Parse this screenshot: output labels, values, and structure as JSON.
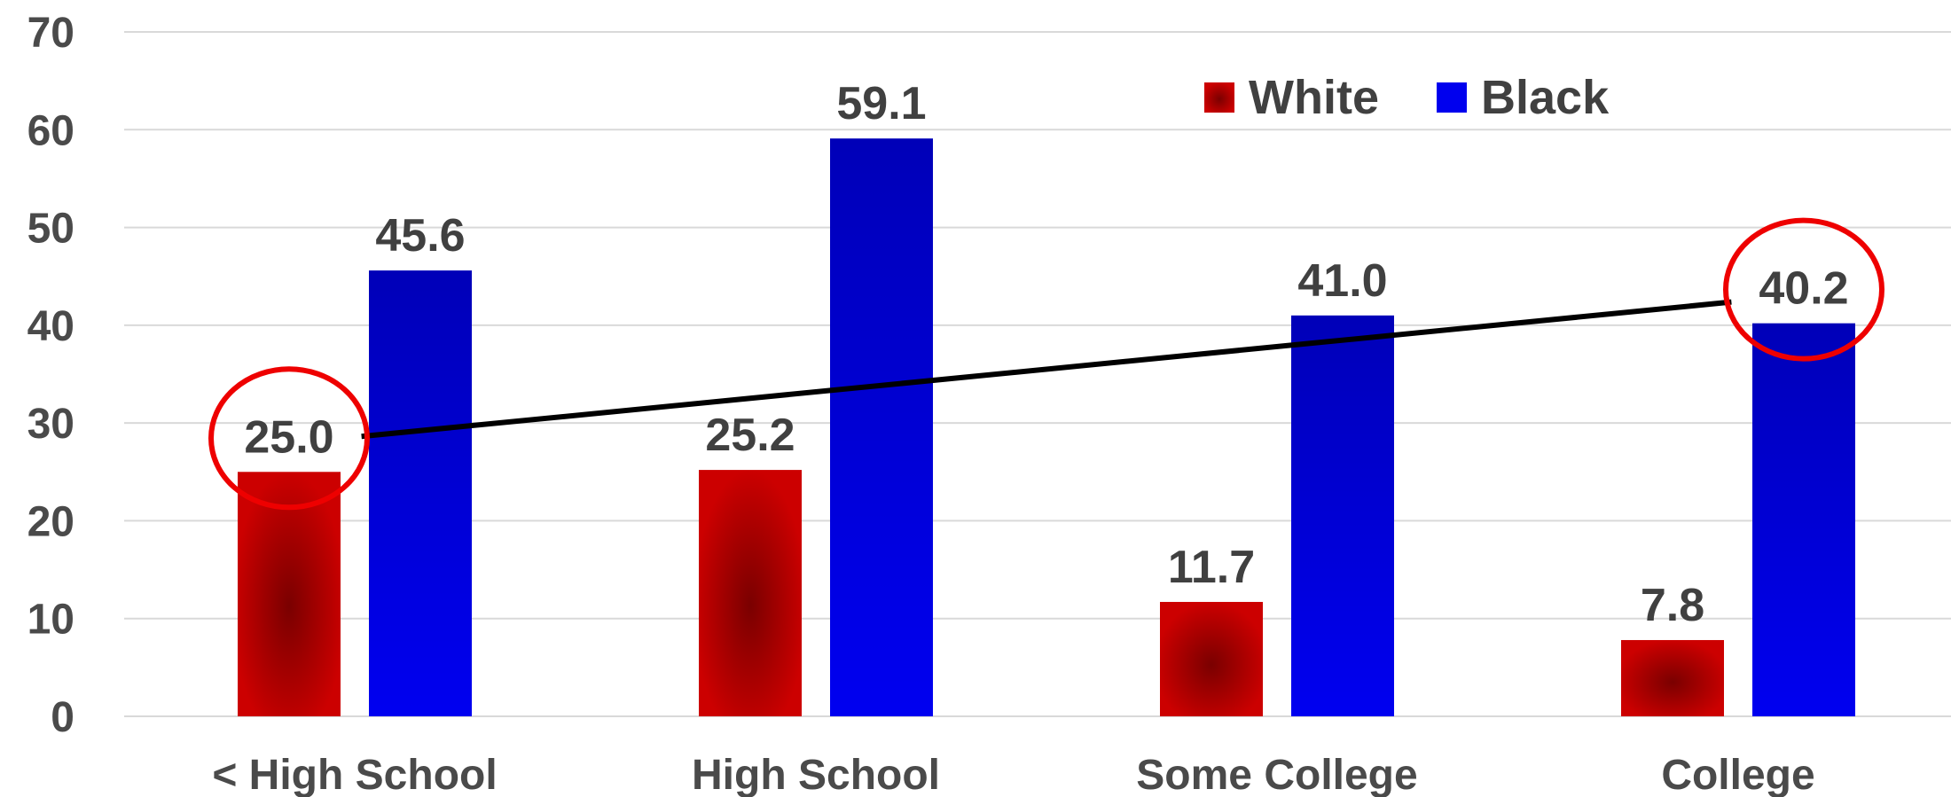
{
  "chart_data": {
    "type": "bar",
    "categories": [
      "< High School",
      "High School",
      "Some College",
      "College"
    ],
    "series": [
      {
        "name": "White",
        "values": [
          25.0,
          25.2,
          11.7,
          7.8
        ],
        "color": "#c00000",
        "dark_color": "#7a0000"
      },
      {
        "name": "Black",
        "values": [
          45.6,
          59.1,
          41.0,
          40.2
        ],
        "color": "#0000ee",
        "dark_color": "#0000b0"
      }
    ],
    "data_labels": [
      "25.0",
      "25.2",
      "11.7",
      "7.8",
      "45.6",
      "59.1",
      "41.0",
      "40.2"
    ],
    "yticks": [
      "0",
      "10",
      "20",
      "30",
      "40",
      "50",
      "60",
      "70"
    ],
    "ylim": [
      0,
      70
    ],
    "grid": true,
    "legend_position": "top-right",
    "annotations": {
      "circled_labels": [
        {
          "category": "< High School",
          "series": "White",
          "value": 25.0
        },
        {
          "category": "College",
          "series": "Black",
          "value": 40.2
        }
      ],
      "trend_line": {
        "from": "< High School White 25.0",
        "to": "College Black 40.2",
        "color": "#000000"
      },
      "circle_color": "#ee0000"
    }
  }
}
